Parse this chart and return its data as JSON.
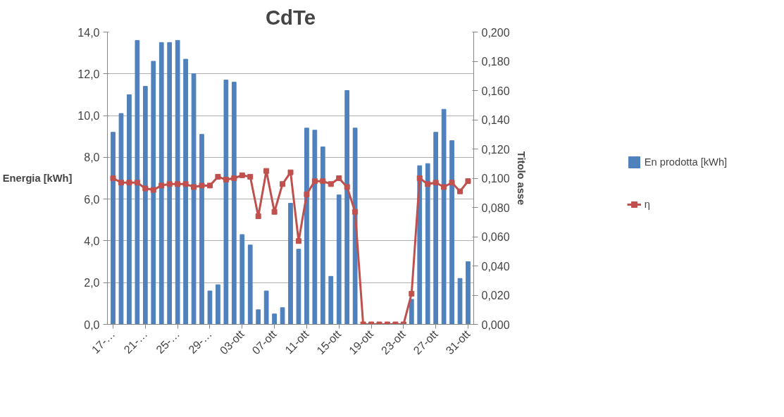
{
  "chart_data": {
    "type": "bar",
    "title": "CdTe",
    "ylabel": "Energia [kWh]",
    "y2label": "Titolo asse",
    "categories": [
      "17-…",
      null,
      null,
      null,
      "21-…",
      null,
      null,
      null,
      "25-…",
      null,
      null,
      null,
      "29-…",
      null,
      null,
      null,
      "03-ott",
      null,
      null,
      null,
      "07-ott",
      null,
      null,
      null,
      "11-ott",
      null,
      null,
      null,
      "15-ott",
      null,
      null,
      null,
      "19-ott",
      null,
      null,
      null,
      "23-ott",
      null,
      null,
      null,
      "27-ott",
      null,
      null,
      null,
      "31-ott"
    ],
    "series": [
      {
        "name": "En prodotta [kWh]",
        "type": "bar",
        "color": "#4f81bd",
        "values": [
          9.2,
          10.1,
          11.0,
          13.6,
          11.4,
          12.6,
          13.5,
          13.5,
          13.6,
          12.7,
          12.0,
          9.1,
          1.6,
          1.9,
          11.7,
          11.6,
          4.3,
          3.8,
          0.7,
          1.6,
          0.5,
          0.8,
          5.8,
          3.6,
          9.4,
          9.3,
          8.5,
          2.3,
          6.2,
          11.2,
          9.4,
          null,
          null,
          null,
          null,
          null,
          null,
          1.2,
          7.6,
          7.7,
          9.2,
          10.3,
          8.8,
          2.2,
          3.0
        ]
      },
      {
        "name": "η",
        "type": "line",
        "axis": "y2",
        "color": "#c0504d",
        "marker": "square",
        "values": [
          0.1,
          0.097,
          0.097,
          0.097,
          0.093,
          0.092,
          0.095,
          0.096,
          0.096,
          0.096,
          0.094,
          0.095,
          0.095,
          0.101,
          0.099,
          0.1,
          0.102,
          0.101,
          0.074,
          0.105,
          0.077,
          0.096,
          0.104,
          0.057,
          0.089,
          0.098,
          0.098,
          0.096,
          0.1,
          0.094,
          0.077,
          0,
          0,
          0,
          0,
          0,
          0,
          0.021,
          0.1,
          0.096,
          0.097,
          0.094,
          0.097,
          0.091,
          0.098
        ]
      }
    ],
    "ylim": [
      0,
      14
    ],
    "yticks": [
      {
        "value": 0,
        "label": "0,0"
      },
      {
        "value": 2,
        "label": "2,0"
      },
      {
        "value": 4,
        "label": "4,0"
      },
      {
        "value": 6,
        "label": "6,0"
      },
      {
        "value": 8,
        "label": "8,0"
      },
      {
        "value": 10,
        "label": "10,0"
      },
      {
        "value": 12,
        "label": "12,0"
      },
      {
        "value": 14,
        "label": "14,0"
      }
    ],
    "y2lim": [
      0,
      0.2
    ],
    "y2ticks": [
      {
        "value": 0,
        "label": "0,000"
      },
      {
        "value": 0.02,
        "label": "0,020"
      },
      {
        "value": 0.04,
        "label": "0,040"
      },
      {
        "value": 0.06,
        "label": "0,060"
      },
      {
        "value": 0.08,
        "label": "0,080"
      },
      {
        "value": 0.1,
        "label": "0,100"
      },
      {
        "value": 0.12,
        "label": "0,120"
      },
      {
        "value": 0.14,
        "label": "0,140"
      },
      {
        "value": 0.16,
        "label": "0,160"
      },
      {
        "value": 0.18,
        "label": "0,180"
      },
      {
        "value": 0.2,
        "label": "0,200"
      }
    ],
    "grid": "y",
    "legend": "right"
  }
}
